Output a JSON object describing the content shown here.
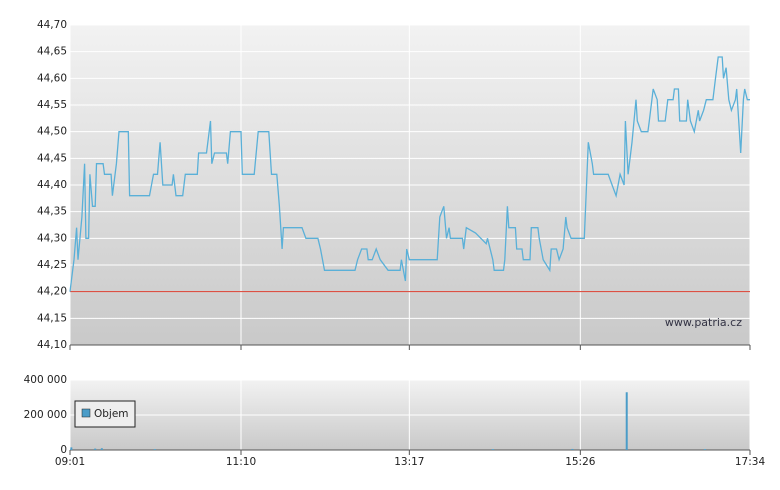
{
  "chart_data": [
    {
      "type": "line",
      "x": [
        "09:01",
        "09:04",
        "09:06",
        "09:07",
        "09:10",
        "09:12",
        "09:13",
        "09:15",
        "09:16",
        "09:18",
        "09:20",
        "09:21",
        "09:26",
        "09:27",
        "09:32",
        "09:33",
        "09:36",
        "09:38",
        "09:45",
        "09:46",
        "10:01",
        "10:04",
        "10:07",
        "10:09",
        "10:11",
        "10:18",
        "10:19",
        "10:21",
        "10:26",
        "10:28",
        "10:37",
        "10:38",
        "10:44",
        "10:47",
        "10:48",
        "10:50",
        "10:59",
        "11:00",
        "11:02",
        "11:10",
        "11:11",
        "11:20",
        "11:23",
        "11:31",
        "11:33",
        "11:37",
        "11:39",
        "11:41",
        "11:42",
        "11:56",
        "11:59",
        "12:08",
        "12:10",
        "12:13",
        "12:36",
        "12:38",
        "12:41",
        "12:45",
        "12:46",
        "12:49",
        "12:52",
        "12:55",
        "13:01",
        "13:10",
        "13:11",
        "13:14",
        "13:15",
        "13:17",
        "13:38",
        "13:40",
        "13:43",
        "13:45",
        "13:47",
        "13:48",
        "13:57",
        "13:58",
        "14:00",
        "14:07",
        "14:15",
        "14:16",
        "14:20",
        "14:21",
        "14:28",
        "14:29",
        "14:31",
        "14:32",
        "14:37",
        "14:38",
        "14:42",
        "14:43",
        "14:48",
        "14:49",
        "14:54",
        "14:55",
        "14:58",
        "15:03",
        "15:04",
        "15:08",
        "15:10",
        "15:13",
        "15:15",
        "15:16",
        "15:19",
        "15:29",
        "15:32",
        "15:35",
        "15:36",
        "15:47",
        "15:50",
        "15:53",
        "15:56",
        "15:59",
        "16:00",
        "16:02",
        "16:05",
        "16:08",
        "16:09",
        "16:12",
        "16:17",
        "16:18",
        "16:21",
        "16:24",
        "16:25",
        "16:30",
        "16:32",
        "16:36",
        "16:37",
        "16:40",
        "16:41",
        "16:46",
        "16:47",
        "16:49",
        "16:52",
        "16:55",
        "16:56",
        "16:59",
        "17:01",
        "17:06",
        "17:08",
        "17:10",
        "17:13",
        "17:14",
        "17:16",
        "17:18",
        "17:20",
        "17:23",
        "17:24",
        "17:26",
        "17:27",
        "17:29",
        "17:30",
        "17:32",
        "17:34"
      ],
      "values": [
        44.2,
        44.26,
        44.32,
        44.26,
        44.34,
        44.44,
        44.3,
        44.3,
        44.42,
        44.36,
        44.36,
        44.44,
        44.44,
        44.42,
        44.42,
        44.38,
        44.44,
        44.5,
        44.5,
        44.38,
        44.38,
        44.42,
        44.42,
        44.48,
        44.4,
        44.4,
        44.42,
        44.38,
        44.38,
        44.42,
        44.42,
        44.46,
        44.46,
        44.52,
        44.44,
        44.46,
        44.46,
        44.44,
        44.5,
        44.5,
        44.42,
        44.42,
        44.5,
        44.5,
        44.42,
        44.42,
        44.36,
        44.28,
        44.32,
        44.32,
        44.3,
        44.3,
        44.28,
        44.24,
        44.24,
        44.26,
        44.28,
        44.28,
        44.26,
        44.26,
        44.28,
        44.26,
        44.24,
        44.24,
        44.26,
        44.22,
        44.28,
        44.26,
        44.26,
        44.34,
        44.36,
        44.3,
        44.32,
        44.3,
        44.3,
        44.28,
        44.32,
        44.31,
        44.29,
        44.3,
        44.26,
        44.24,
        44.24,
        44.26,
        44.36,
        44.32,
        44.32,
        44.28,
        44.28,
        44.26,
        44.26,
        44.32,
        44.32,
        44.3,
        44.26,
        44.24,
        44.28,
        44.28,
        44.26,
        44.28,
        44.34,
        44.32,
        44.3,
        44.3,
        44.48,
        44.44,
        44.42,
        44.42,
        44.4,
        44.38,
        44.42,
        44.4,
        44.52,
        44.42,
        44.48,
        44.56,
        44.52,
        44.5,
        44.5,
        44.52,
        44.58,
        44.56,
        44.52,
        44.52,
        44.56,
        44.56,
        44.58,
        44.58,
        44.52,
        44.52,
        44.56,
        44.52,
        44.5,
        44.54,
        44.52,
        44.54,
        44.56,
        44.56,
        44.6,
        44.64,
        44.64,
        44.6,
        44.62,
        44.56,
        44.54,
        44.56,
        44.58,
        44.5,
        44.46,
        44.56,
        44.58,
        44.56,
        44.56
      ],
      "color": "#5ab0d8",
      "xlim": [
        "09:01",
        "17:34"
      ],
      "xticks": [
        "09:01",
        "11:10",
        "13:17",
        "15:26",
        "17:34"
      ],
      "ylim": [
        44.1,
        44.7
      ],
      "yticks": [
        {
          "value": 44.1,
          "label": "44,10"
        },
        {
          "value": 44.15,
          "label": "44,15"
        },
        {
          "value": 44.2,
          "label": "44,20"
        },
        {
          "value": 44.25,
          "label": "44,25"
        },
        {
          "value": 44.3,
          "label": "44,30"
        },
        {
          "value": 44.35,
          "label": "44,35"
        },
        {
          "value": 44.4,
          "label": "44,40"
        },
        {
          "value": 44.45,
          "label": "44,45"
        },
        {
          "value": 44.5,
          "label": "44,50"
        },
        {
          "value": 44.55,
          "label": "44,55"
        },
        {
          "value": 44.6,
          "label": "44,60"
        },
        {
          "value": 44.65,
          "label": "44,65"
        },
        {
          "value": 44.7,
          "label": "44,70"
        }
      ],
      "grid": true,
      "reference_line": 44.2,
      "reference_color": "#d93a2b",
      "annotation": "www.patria.cz"
    },
    {
      "type": "bar",
      "x": [
        "09:02",
        "09:20",
        "09:25",
        "10:05",
        "14:20",
        "15:20",
        "16:01",
        "17:00"
      ],
      "series": [
        {
          "name": "Objem",
          "color": "#4a9cc8",
          "values": [
            15000,
            8000,
            10000,
            5000,
            5000,
            6000,
            330000,
            5000
          ]
        }
      ],
      "xlim": [
        "09:01",
        "17:34"
      ],
      "xticks": [
        "09:01",
        "11:10",
        "13:17",
        "15:26",
        "17:34"
      ],
      "ylim": [
        0,
        400000
      ],
      "yticks": [
        0,
        {
          "value": 200000,
          "label": "200 000"
        },
        {
          "value": 400000,
          "label": "400 000"
        }
      ],
      "grid": true,
      "legend": "left"
    }
  ]
}
